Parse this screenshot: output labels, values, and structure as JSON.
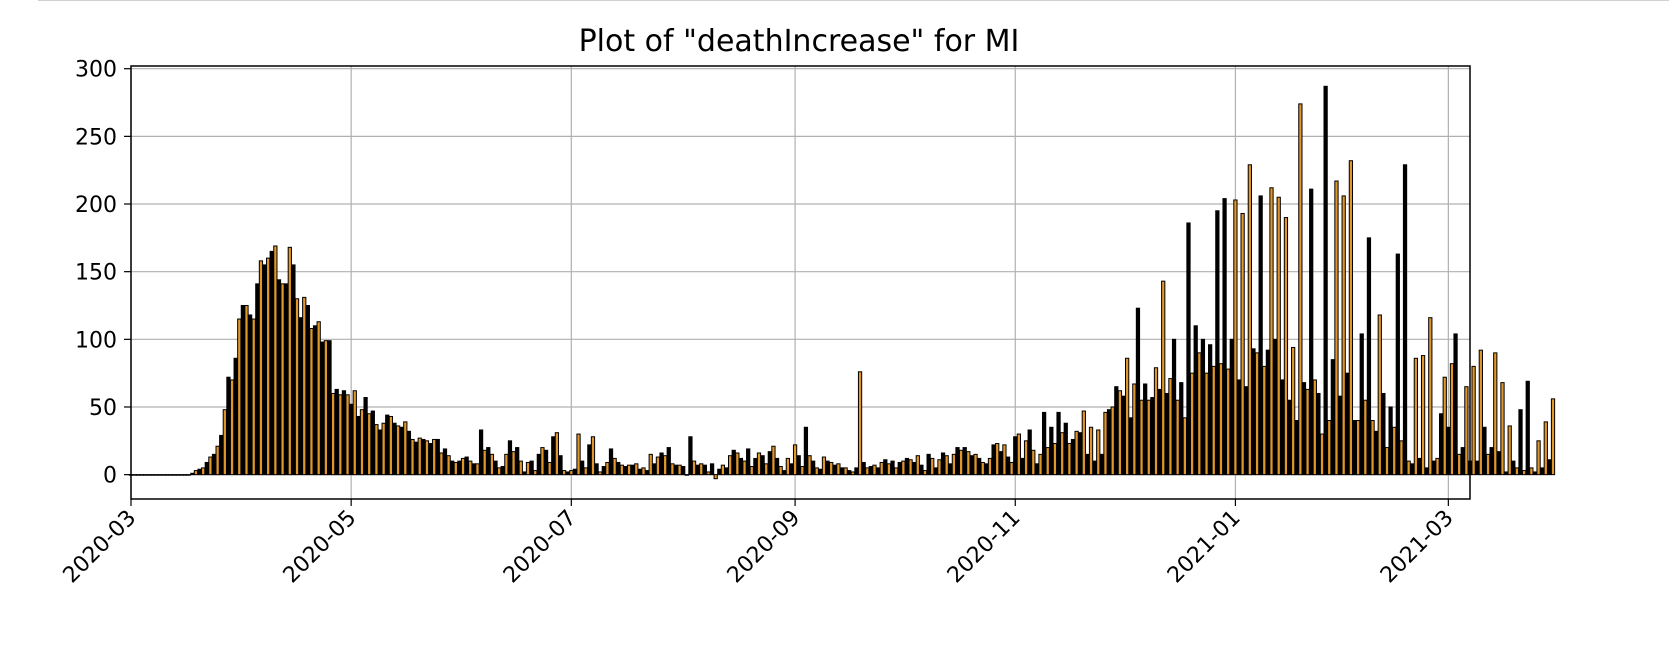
{
  "chart_data": {
    "type": "bar",
    "title": "Plot of \"deathIncrease\" for MI",
    "xlabel": "",
    "ylabel": "",
    "x_start": "2020-03-01",
    "x_end": "2021-03-07",
    "ylim": [
      -18,
      302
    ],
    "grid": true,
    "x_ticks": [
      "2020-03",
      "2020-05",
      "2020-07",
      "2020-09",
      "2020-11",
      "2021-01",
      "2021-03"
    ],
    "y_ticks": [
      0,
      50,
      100,
      150,
      200,
      250,
      300
    ],
    "colors": {
      "bar_odd": "#e0962a",
      "bar_even": "#000000",
      "bar_edge": "#000000",
      "grid": "#b0b0b0",
      "axes": "#000000"
    },
    "series": [
      {
        "start_date": "2020-03-01",
        "values": [
          0,
          0,
          0,
          0,
          0,
          0,
          0,
          0,
          0,
          0,
          0,
          0,
          0,
          0,
          0,
          0,
          0,
          1,
          3,
          4,
          5,
          9,
          13,
          15,
          21,
          29,
          48,
          72,
          70,
          86,
          115,
          125,
          125,
          118,
          115,
          141,
          158,
          155,
          160,
          165,
          169,
          144,
          141,
          141,
          168,
          155,
          130,
          116,
          131,
          125,
          108,
          110,
          113,
          98,
          99,
          99,
          60,
          63,
          59,
          62,
          59,
          52,
          62,
          43,
          48,
          57,
          45,
          47,
          37,
          33,
          38,
          44,
          43,
          38,
          36,
          35,
          39,
          32,
          26,
          24,
          27,
          26,
          25,
          23,
          26,
          26,
          16,
          19,
          14,
          10,
          9,
          10,
          12,
          13,
          10,
          8,
          8,
          33,
          18,
          20,
          15,
          10,
          5,
          6,
          15,
          25,
          17,
          20,
          10,
          2,
          9,
          10,
          3,
          15,
          20,
          18,
          9,
          28,
          31,
          14,
          3,
          2,
          3,
          4,
          30,
          10,
          5,
          22,
          28,
          8,
          2,
          6,
          9,
          19,
          12,
          9,
          7,
          6,
          7,
          7,
          8,
          4,
          5,
          3,
          15,
          8,
          13,
          16,
          14,
          20,
          8,
          7,
          7,
          6,
          0,
          28,
          10,
          7,
          8,
          7,
          2,
          8,
          -3,
          4,
          7,
          5,
          14,
          18,
          16,
          12,
          10,
          19,
          6,
          12,
          16,
          14,
          8,
          17,
          21,
          12,
          6,
          3,
          12,
          8,
          22,
          14,
          6,
          35,
          14,
          10,
          5,
          4,
          13,
          10,
          9,
          7,
          8,
          5,
          5,
          3,
          2,
          5,
          76,
          9,
          5,
          6,
          7,
          5,
          9,
          11,
          8,
          10,
          5,
          9,
          10,
          12,
          11,
          9,
          14,
          7,
          3,
          15,
          12,
          5,
          11,
          16,
          14,
          8,
          15,
          20,
          18,
          20,
          17,
          14,
          15,
          12,
          9,
          8,
          12,
          22,
          23,
          17,
          22,
          13,
          9,
          28,
          30,
          12,
          25,
          33,
          18,
          8,
          15,
          46,
          20,
          35,
          23,
          46,
          31,
          38,
          23,
          26,
          32,
          31,
          47,
          15,
          35,
          10,
          33,
          15,
          46,
          48,
          50,
          65,
          62,
          58,
          86,
          42,
          67,
          123,
          55,
          67,
          55,
          57,
          79,
          63,
          143,
          60,
          71,
          100,
          55,
          68,
          42,
          186,
          75,
          110,
          90,
          100,
          75,
          96,
          80,
          195,
          82,
          204,
          78,
          100,
          203,
          70,
          193,
          65,
          229,
          93,
          90,
          206,
          80,
          92,
          212,
          100,
          205,
          70,
          190,
          55,
          94,
          40,
          274,
          68,
          63,
          211,
          70,
          60,
          30,
          287,
          40,
          85,
          217,
          58,
          206,
          75,
          232,
          40,
          40,
          104,
          55,
          175,
          40,
          32,
          118,
          60,
          20,
          50,
          35,
          163,
          25,
          229,
          10,
          8,
          86,
          12,
          88,
          5,
          116,
          10,
          12,
          45,
          72,
          35,
          82,
          104,
          15,
          20,
          65,
          10,
          80,
          10,
          92,
          35,
          15,
          20,
          90,
          17,
          68,
          2,
          36,
          10,
          5,
          48,
          3,
          69,
          5,
          2,
          25,
          5,
          39,
          11,
          56
        ]
      }
    ]
  }
}
